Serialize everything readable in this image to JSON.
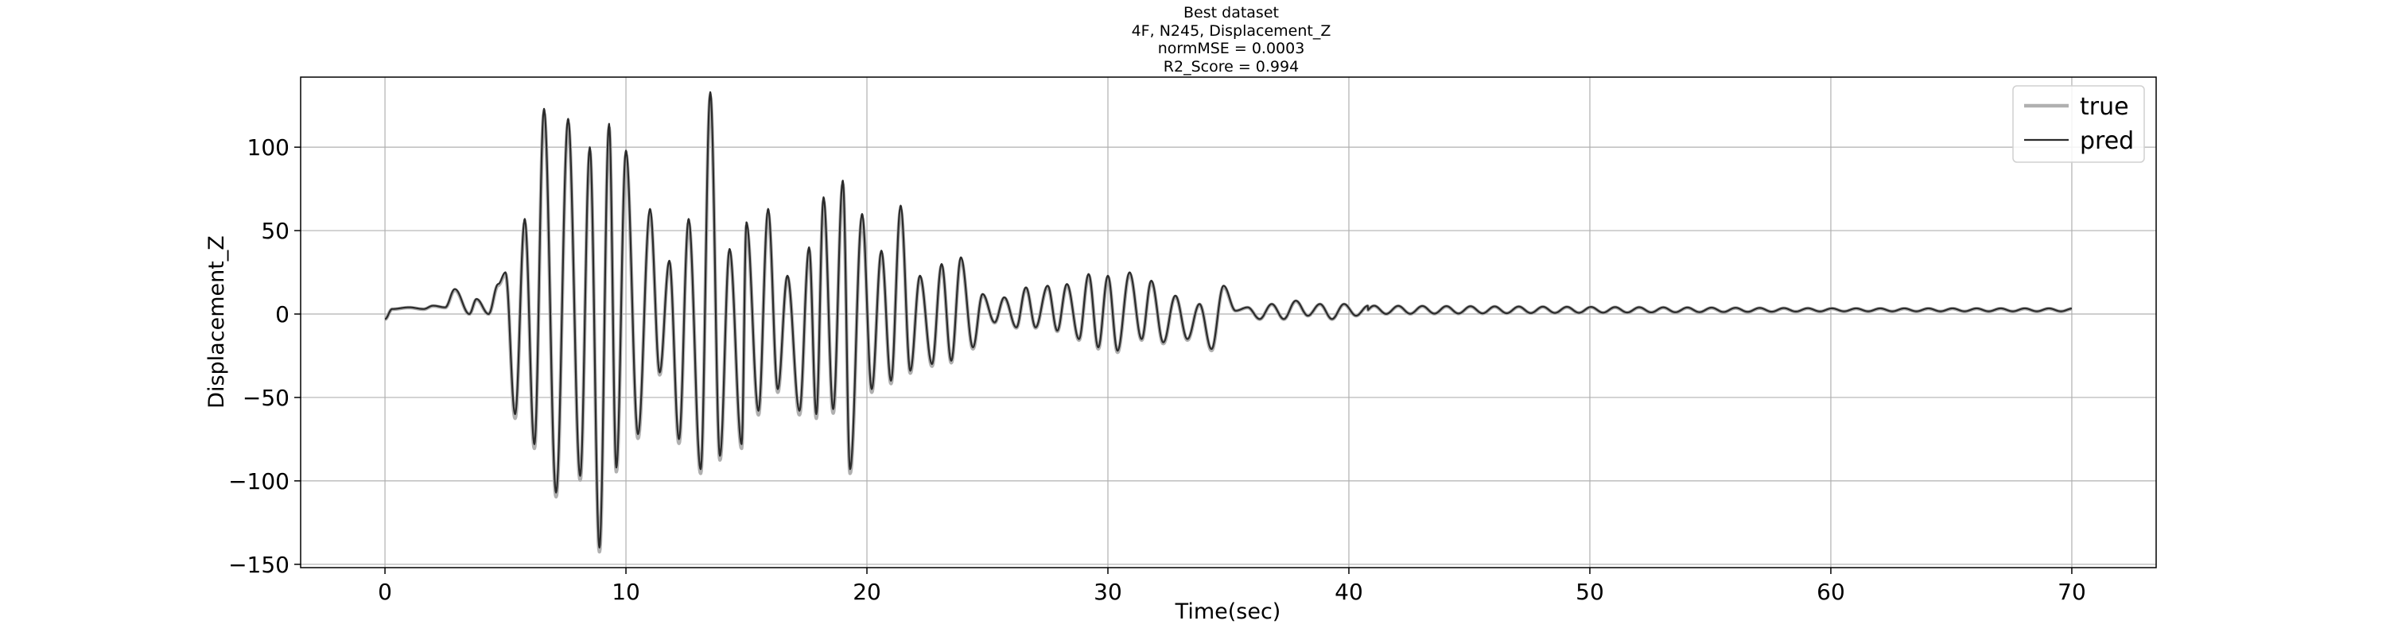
{
  "chart_data": {
    "type": "line",
    "title_lines": [
      "Best dataset",
      "4F, N245, Displacement_Z",
      "normMSE = 0.0003",
      "R2_Score = 0.994"
    ],
    "xlabel": "Time(sec)",
    "ylabel": "Displacement_Z",
    "xlim": [
      -3.5,
      73.5
    ],
    "ylim": [
      -152,
      142
    ],
    "xticks": [
      0,
      10,
      20,
      30,
      40,
      50,
      60,
      70
    ],
    "yticks": [
      -150,
      -100,
      -50,
      0,
      50,
      100
    ],
    "xtick_labels": [
      "0",
      "10",
      "20",
      "30",
      "40",
      "50",
      "60",
      "70"
    ],
    "ytick_labels": [
      "−150",
      "−100",
      "−50",
      "0",
      "50",
      "100"
    ],
    "grid": true,
    "legend_position": "top-right",
    "series": [
      {
        "name": "true",
        "color": "#b0b0b0",
        "offset": -2.5
      },
      {
        "name": "pred",
        "color": "#2b2b2b",
        "offset": 0
      }
    ],
    "shared_waveform": {
      "x_range": [
        0,
        70
      ],
      "sample_step": 0.02,
      "description_points": [
        [
          0,
          -3
        ],
        [
          0.3,
          3
        ],
        [
          1.0,
          4
        ],
        [
          1.6,
          3
        ],
        [
          2.0,
          5
        ],
        [
          2.5,
          4
        ],
        [
          2.9,
          15
        ],
        [
          3.5,
          0
        ],
        [
          3.8,
          9
        ],
        [
          4.3,
          0
        ],
        [
          4.7,
          18
        ],
        [
          5.0,
          25
        ],
        [
          5.4,
          -60
        ],
        [
          5.8,
          57
        ],
        [
          6.2,
          -78
        ],
        [
          6.6,
          123
        ],
        [
          7.1,
          -107
        ],
        [
          7.6,
          117
        ],
        [
          8.1,
          -97
        ],
        [
          8.5,
          100
        ],
        [
          8.9,
          -140
        ],
        [
          9.3,
          114
        ],
        [
          9.6,
          -92
        ],
        [
          10.0,
          98
        ],
        [
          10.5,
          -72
        ],
        [
          11.0,
          63
        ],
        [
          11.4,
          -35
        ],
        [
          11.8,
          32
        ],
        [
          12.2,
          -75
        ],
        [
          12.6,
          57
        ],
        [
          13.1,
          -93
        ],
        [
          13.5,
          133
        ],
        [
          13.9,
          -85
        ],
        [
          14.3,
          39
        ],
        [
          14.8,
          -78
        ],
        [
          15.0,
          55
        ],
        [
          15.5,
          -58
        ],
        [
          15.9,
          63
        ],
        [
          16.3,
          -45
        ],
        [
          16.7,
          23
        ],
        [
          17.2,
          -58
        ],
        [
          17.6,
          40
        ],
        [
          17.9,
          -60
        ],
        [
          18.2,
          70
        ],
        [
          18.6,
          -57
        ],
        [
          19.0,
          80
        ],
        [
          19.3,
          -93
        ],
        [
          19.8,
          60
        ],
        [
          20.2,
          -45
        ],
        [
          20.6,
          38
        ],
        [
          21.0,
          -40
        ],
        [
          21.4,
          65
        ],
        [
          21.8,
          -34
        ],
        [
          22.2,
          23
        ],
        [
          22.7,
          -30
        ],
        [
          23.1,
          30
        ],
        [
          23.5,
          -28
        ],
        [
          23.9,
          34
        ],
        [
          24.4,
          -20
        ],
        [
          24.8,
          12
        ],
        [
          25.3,
          -5
        ],
        [
          25.7,
          10
        ],
        [
          26.2,
          -8
        ],
        [
          26.6,
          16
        ],
        [
          27.0,
          -8
        ],
        [
          27.5,
          17
        ],
        [
          27.9,
          -10
        ],
        [
          28.3,
          18
        ],
        [
          28.8,
          -15
        ],
        [
          29.2,
          24
        ],
        [
          29.6,
          -20
        ],
        [
          30.0,
          23
        ],
        [
          30.4,
          -22
        ],
        [
          30.9,
          25
        ],
        [
          31.4,
          -15
        ],
        [
          31.8,
          20
        ],
        [
          32.3,
          -17
        ],
        [
          32.8,
          11
        ],
        [
          33.3,
          -15
        ],
        [
          33.8,
          6
        ],
        [
          34.3,
          -21
        ],
        [
          34.8,
          17
        ],
        [
          35.3,
          2
        ],
        [
          35.8,
          4
        ],
        [
          36.3,
          -3
        ],
        [
          36.8,
          6
        ],
        [
          37.3,
          -3
        ],
        [
          37.8,
          8
        ],
        [
          38.3,
          -1
        ],
        [
          38.8,
          6
        ],
        [
          39.3,
          -3
        ],
        [
          39.8,
          6
        ],
        [
          40.3,
          -1
        ],
        [
          40.8,
          5
        ],
        [
          42.0,
          0
        ],
        [
          45.0,
          4
        ],
        [
          50.0,
          1
        ],
        [
          55.0,
          3
        ],
        [
          60.0,
          2
        ],
        [
          65.0,
          3
        ],
        [
          70.0,
          3
        ]
      ]
    }
  }
}
